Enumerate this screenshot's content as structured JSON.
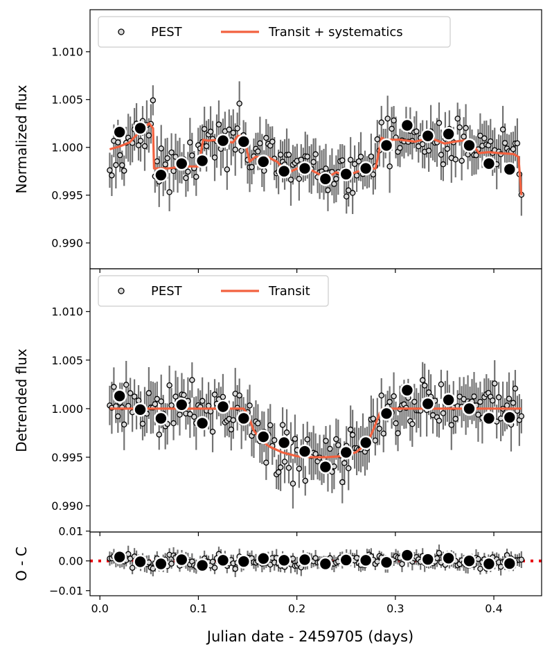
{
  "chart_data": [
    {
      "panel": "top",
      "type": "scatter",
      "ylabel": "Normalized flux",
      "ylim": [
        0.9873,
        1.0144
      ],
      "xlim": [
        -0.01,
        0.4485
      ],
      "yticks": [
        0.99,
        0.995,
        1.0,
        1.005,
        1.01
      ],
      "ytick_labels": [
        "0.990",
        "0.995",
        "1.000",
        "1.005",
        "1.010"
      ],
      "legend": {
        "location": "top-left",
        "entries": [
          "PEST",
          "Transit + systematics"
        ]
      },
      "series": [
        {
          "name": "PEST",
          "binned_x": [
            0.02,
            0.041,
            0.062,
            0.083,
            0.104,
            0.125,
            0.146,
            0.166,
            0.187,
            0.208,
            0.229,
            0.25,
            0.27,
            0.291,
            0.312,
            0.333,
            0.354,
            0.375,
            0.395,
            0.416
          ],
          "binned_y": [
            1.0016,
            1.002,
            0.9971,
            0.9983,
            0.9986,
            1.0007,
            1.0006,
            0.9985,
            0.9975,
            0.9978,
            0.9967,
            0.9972,
            0.9978,
            1.0002,
            1.0023,
            1.0012,
            1.0014,
            1.0002,
            0.9983,
            0.9977
          ]
        },
        {
          "name": "Transit + systematics",
          "x": [
            0.01,
            0.02,
            0.03,
            0.04,
            0.05,
            0.054,
            0.055,
            0.07,
            0.085,
            0.095,
            0.1,
            0.105,
            0.11,
            0.12,
            0.135,
            0.14,
            0.146,
            0.152,
            0.158,
            0.17,
            0.18,
            0.19,
            0.205,
            0.215,
            0.23,
            0.24,
            0.25,
            0.265,
            0.28,
            0.286,
            0.29,
            0.305,
            0.32,
            0.335,
            0.35,
            0.36,
            0.375,
            0.385,
            0.395,
            0.405,
            0.42,
            0.425,
            0.428
          ],
          "y": [
            0.9998,
            1.0001,
            1.0005,
            1.0016,
            1.0025,
            1.002,
            0.9978,
            0.9978,
            0.998,
            0.998,
            0.998,
            1.0008,
            1.0007,
            1.0008,
            1.0005,
            1.0012,
            1.0012,
            0.9985,
            0.999,
            0.999,
            0.9985,
            0.9973,
            0.998,
            0.9976,
            0.9968,
            0.9974,
            0.997,
            0.9976,
            0.9978,
            1.001,
            1.0008,
            1.0008,
            1.0006,
            1.001,
            1.0004,
            1.0006,
            1.0008,
            0.9994,
            0.9995,
            0.9994,
            0.9993,
            0.999,
            0.995
          ]
        }
      ]
    },
    {
      "panel": "middle",
      "type": "scatter",
      "ylabel": "Detrended flux",
      "ylim": [
        0.9873,
        1.0144
      ],
      "xlim": [
        -0.01,
        0.4485
      ],
      "yticks": [
        0.99,
        0.995,
        1.0,
        1.005,
        1.01
      ],
      "ytick_labels": [
        "0.990",
        "0.995",
        "1.000",
        "1.005",
        "1.010"
      ],
      "legend": {
        "location": "top-left",
        "entries": [
          "PEST",
          "Transit"
        ]
      },
      "series": [
        {
          "name": "PEST",
          "binned_x": [
            0.02,
            0.041,
            0.062,
            0.083,
            0.104,
            0.125,
            0.146,
            0.166,
            0.187,
            0.208,
            0.229,
            0.25,
            0.27,
            0.291,
            0.312,
            0.333,
            0.354,
            0.375,
            0.395,
            0.416
          ],
          "binned_y": [
            1.0013,
            0.9999,
            0.999,
            1.0004,
            0.9985,
            1.0002,
            0.999,
            0.9971,
            0.9965,
            0.9956,
            0.994,
            0.9955,
            0.9965,
            0.9995,
            1.0019,
            1.0005,
            1.0009,
            1.0,
            0.999,
            0.9991
          ]
        },
        {
          "name": "Transit",
          "x": [
            0.01,
            0.146,
            0.151,
            0.156,
            0.163,
            0.172,
            0.185,
            0.2,
            0.215,
            0.23,
            0.245,
            0.26,
            0.267,
            0.274,
            0.279,
            0.284,
            0.287,
            0.428
          ],
          "y": [
            1.0,
            1.0,
            0.9992,
            0.9978,
            0.9968,
            0.9961,
            0.9955,
            0.9951,
            0.995,
            0.995,
            0.9951,
            0.9955,
            0.9961,
            0.997,
            0.9982,
            0.9995,
            1.0,
            1.0
          ]
        }
      ]
    },
    {
      "panel": "bottom",
      "type": "scatter",
      "ylabel": "O - C",
      "xlabel": "Julian date - 2459705 (days)",
      "ylim": [
        -0.0117,
        0.0097
      ],
      "xlim": [
        -0.01,
        0.4485
      ],
      "yticks": [
        -0.01,
        0.0,
        0.01
      ],
      "ytick_labels": [
        "−0.01",
        "0.00",
        "0.01"
      ],
      "xticks": [
        0.0,
        0.1,
        0.2,
        0.3,
        0.4
      ],
      "xtick_labels": [
        "0.0",
        "0.1",
        "0.2",
        "0.3",
        "0.4"
      ],
      "zero_line": {
        "style": "dotted",
        "color": "#e8000b"
      },
      "series": [
        {
          "name": "PEST",
          "binned_x": [
            0.02,
            0.041,
            0.062,
            0.083,
            0.104,
            0.125,
            0.146,
            0.166,
            0.187,
            0.208,
            0.229,
            0.25,
            0.27,
            0.291,
            0.312,
            0.333,
            0.354,
            0.375,
            0.395,
            0.416
          ],
          "binned_y": [
            0.0013,
            -0.0003,
            -0.001,
            0.0004,
            -0.0015,
            0.0002,
            -0.0002,
            0.0008,
            0.0002,
            0.0004,
            -0.001,
            0.0003,
            0.0002,
            -0.0005,
            0.0019,
            0.0005,
            0.0009,
            0.0,
            -0.001,
            -0.0009
          ]
        }
      ]
    }
  ],
  "colors": {
    "model": "#f2613f",
    "point_fill": "#d8d8d8",
    "errorbar": "#5a5a5a",
    "binned_fill": "#000000",
    "zero_line": "#e8000b"
  }
}
